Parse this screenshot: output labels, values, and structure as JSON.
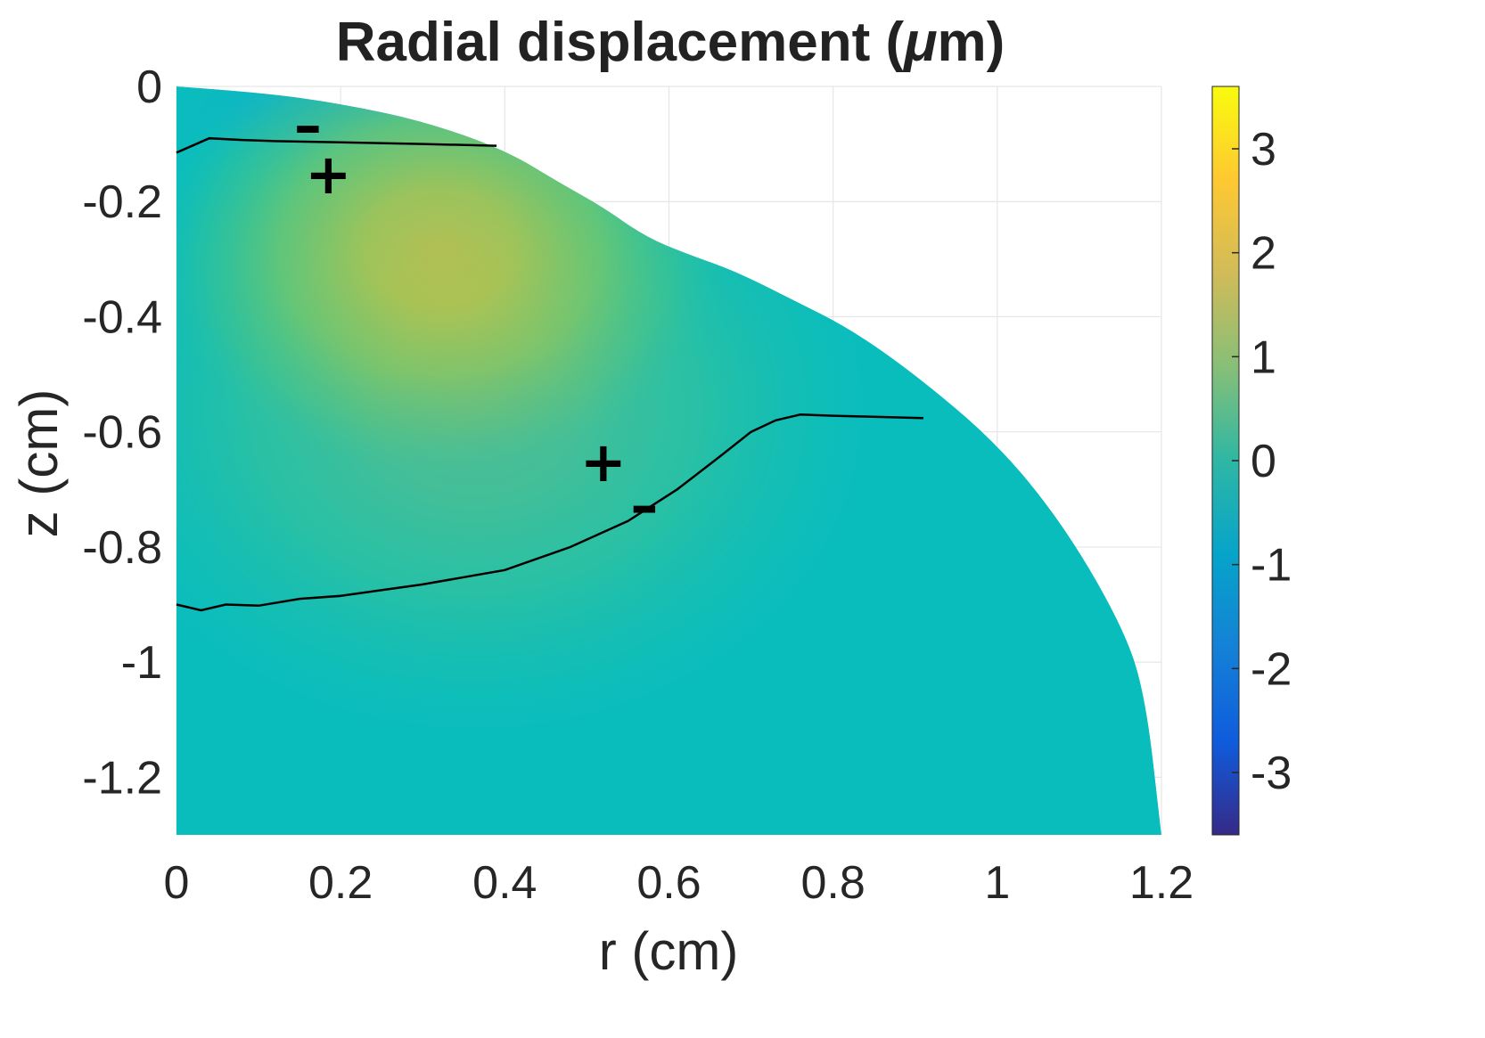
{
  "chart_data": {
    "type": "heatmap",
    "title_prefix": "Radial  displacement  (",
    "title_mu": "μ",
    "title_suffix": "m)",
    "xlabel": "r (cm)",
    "ylabel": "z (cm)",
    "xlim": [
      0,
      1.2
    ],
    "ylim": [
      -1.3,
      0
    ],
    "xticks": [
      0,
      0.2,
      0.4,
      0.6,
      0.8,
      1,
      1.2
    ],
    "xtick_labels": [
      "0",
      "0.2",
      "0.4",
      "0.6",
      "0.8",
      "1",
      "1.2"
    ],
    "yticks": [
      0,
      -0.2,
      -0.4,
      -0.6,
      -0.8,
      -1,
      -1.2
    ],
    "ytick_labels": [
      "0",
      "-0.2",
      "-0.4",
      "-0.6",
      "-0.8",
      "-1",
      "-1.2"
    ],
    "grid": true,
    "colormap": "parula",
    "colorbar": {
      "range": [
        -3.6,
        3.6
      ],
      "ticks": [
        3,
        2,
        1,
        0,
        -1,
        -2,
        -3
      ],
      "tick_labels": [
        "3",
        "2",
        "1",
        "0",
        "-1",
        "-2",
        "-3"
      ],
      "stops": [
        "#352a87",
        "#0f5cdd",
        "#1481d6",
        "#06a4ca",
        "#2eb7a4",
        "#87bf77",
        "#d1bb59",
        "#fec832",
        "#f9fb0e"
      ]
    },
    "field": {
      "background_color": "#0abdbd",
      "peak": {
        "r": 0.32,
        "z": -0.28,
        "value": 2.2
      },
      "negative_region": {
        "r": 0.25,
        "z": -0.05,
        "value": -0.5
      }
    },
    "domain_boundary": [
      [
        0,
        0
      ],
      [
        0.1,
        -0.01
      ],
      [
        0.2,
        -0.03
      ],
      [
        0.3,
        -0.06
      ],
      [
        0.4,
        -0.11
      ],
      [
        0.47,
        -0.17
      ],
      [
        0.52,
        -0.21
      ],
      [
        0.57,
        -0.26
      ],
      [
        0.62,
        -0.29
      ],
      [
        0.68,
        -0.32
      ],
      [
        0.75,
        -0.37
      ],
      [
        0.82,
        -0.42
      ],
      [
        0.9,
        -0.5
      ],
      [
        1.0,
        -0.62
      ],
      [
        1.08,
        -0.76
      ],
      [
        1.15,
        -0.93
      ],
      [
        1.18,
        -1.05
      ],
      [
        1.2,
        -1.3
      ],
      [
        0,
        -1.3
      ]
    ],
    "zero_contours": [
      {
        "points": [
          [
            0,
            -0.115
          ],
          [
            0.04,
            -0.09
          ],
          [
            0.08,
            -0.093
          ],
          [
            0.12,
            -0.095
          ],
          [
            0.2,
            -0.097
          ],
          [
            0.3,
            -0.1
          ],
          [
            0.39,
            -0.103
          ]
        ]
      },
      {
        "points": [
          [
            0,
            -0.9
          ],
          [
            0.03,
            -0.91
          ],
          [
            0.06,
            -0.9
          ],
          [
            0.1,
            -0.902
          ],
          [
            0.15,
            -0.89
          ],
          [
            0.2,
            -0.885
          ],
          [
            0.3,
            -0.865
          ],
          [
            0.4,
            -0.84
          ],
          [
            0.48,
            -0.8
          ],
          [
            0.55,
            -0.755
          ],
          [
            0.61,
            -0.7
          ],
          [
            0.66,
            -0.645
          ],
          [
            0.7,
            -0.6
          ],
          [
            0.73,
            -0.58
          ],
          [
            0.76,
            -0.57
          ],
          [
            0.8,
            -0.572
          ],
          [
            0.88,
            -0.575
          ],
          [
            0.91,
            -0.576
          ]
        ]
      }
    ],
    "annotations": [
      {
        "text": "–",
        "r": 0.16,
        "z": -0.07
      },
      {
        "text": "+",
        "r": 0.185,
        "z": -0.155
      },
      {
        "text": "+",
        "r": 0.52,
        "z": -0.655
      },
      {
        "text": "–",
        "r": 0.57,
        "z": -0.73
      }
    ]
  }
}
